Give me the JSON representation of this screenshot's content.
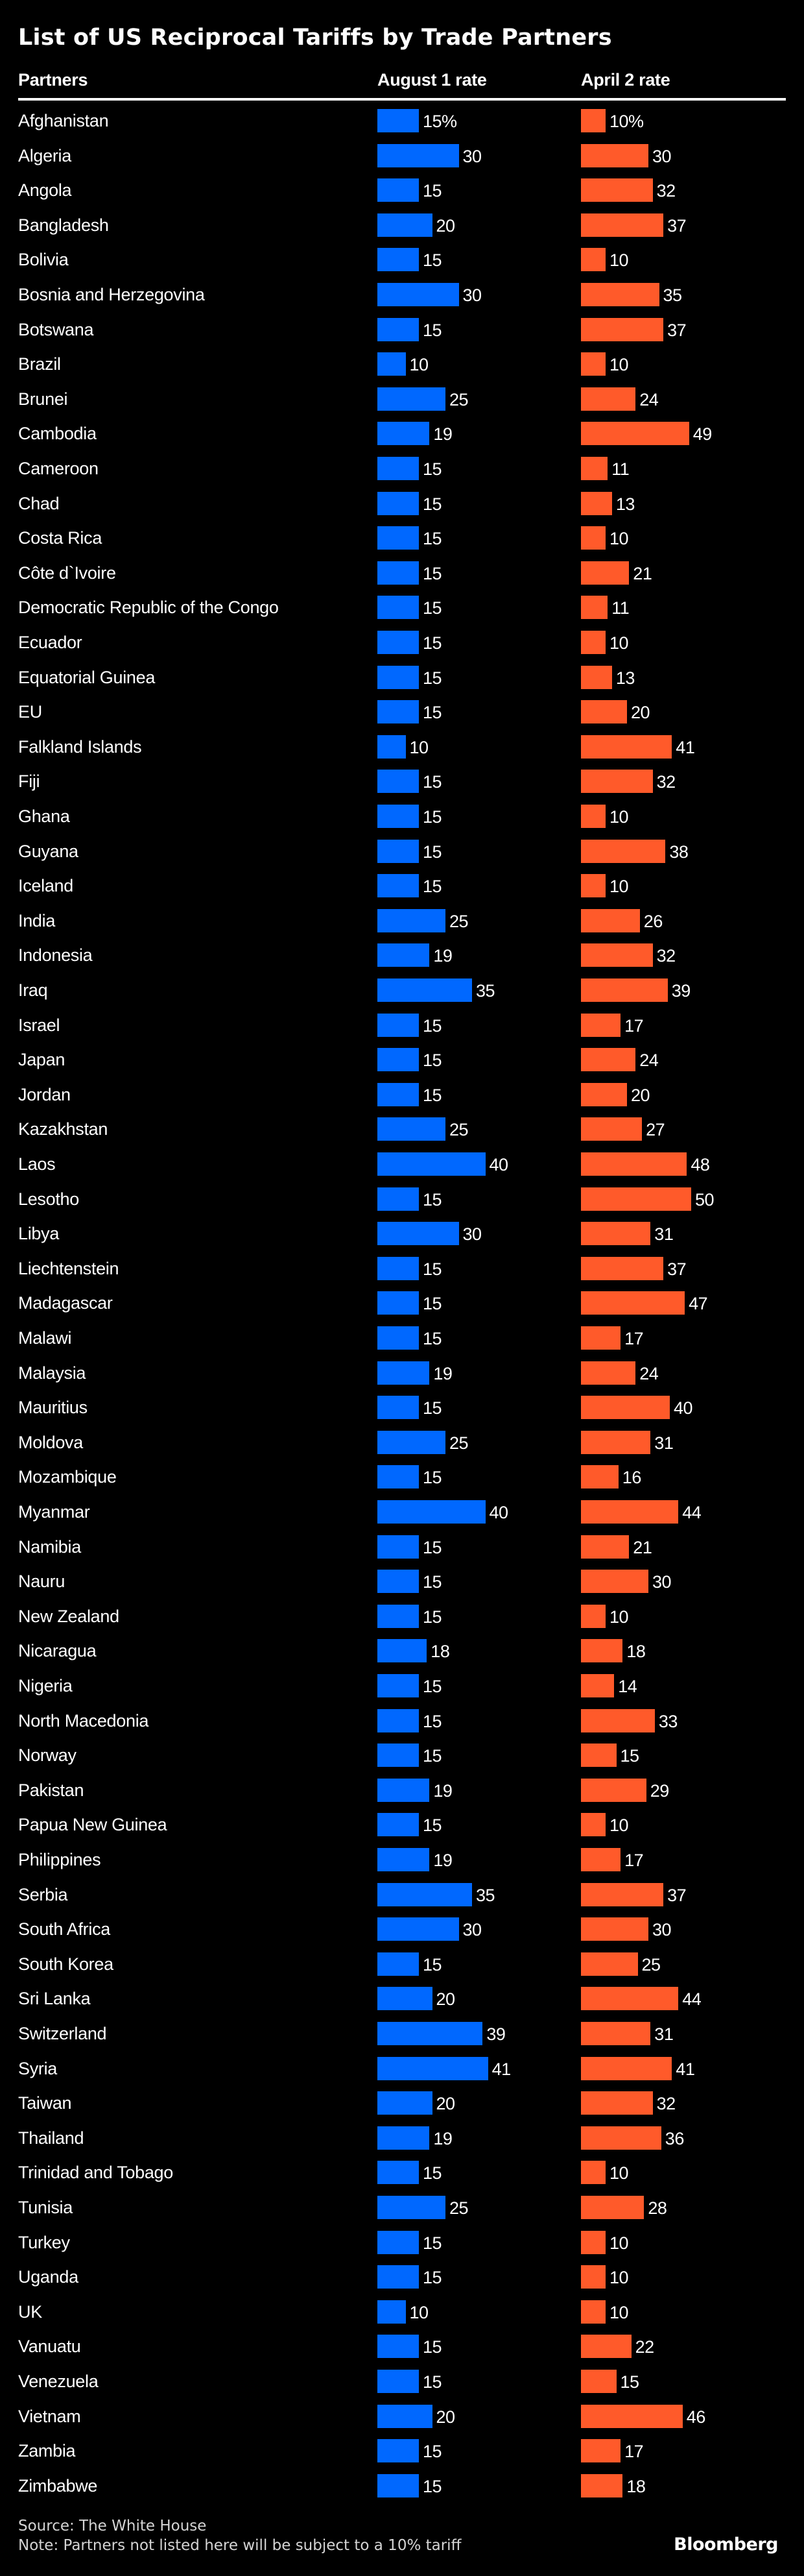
{
  "chart_data": {
    "type": "bar",
    "title": "List of US Reciprocal Tariffs by Trade Partners",
    "columns": {
      "partners": "Partners",
      "august": "August 1 rate",
      "april": "April 2 rate"
    },
    "unit": "%",
    "colors": {
      "august": "#0068ff",
      "april": "#ff5a2a"
    },
    "categories": [
      "Afghanistan",
      "Algeria",
      "Angola",
      "Bangladesh",
      "Bolivia",
      "Bosnia and Herzegovina",
      "Botswana",
      "Brazil",
      "Brunei",
      "Cambodia",
      "Cameroon",
      "Chad",
      "Costa Rica",
      "Côte d`Ivoire",
      "Democratic Republic of the Congo",
      "Ecuador",
      "Equatorial Guinea",
      "EU",
      "Falkland Islands",
      "Fiji",
      "Ghana",
      "Guyana",
      "Iceland",
      "India",
      "Indonesia",
      "Iraq",
      "Israel",
      "Japan",
      "Jordan",
      "Kazakhstan",
      "Laos",
      "Lesotho",
      "Libya",
      "Liechtenstein",
      "Madagascar",
      "Malawi",
      "Malaysia",
      "Mauritius",
      "Moldova",
      "Mozambique",
      "Myanmar",
      "Namibia",
      "Nauru",
      "New Zealand",
      "Nicaragua",
      "Nigeria",
      "North Macedonia",
      "Norway",
      "Pakistan",
      "Papua New Guinea",
      "Philippines",
      "Serbia",
      "South Africa",
      "South Korea",
      "Sri Lanka",
      "Switzerland",
      "Syria",
      "Taiwan",
      "Thailand",
      "Trinidad and Tobago",
      "Tunisia",
      "Turkey",
      "Uganda",
      "UK",
      "Vanuatu",
      "Venezuela",
      "Vietnam",
      "Zambia",
      "Zimbabwe"
    ],
    "series": [
      {
        "name": "August 1 rate",
        "values": [
          15,
          30,
          15,
          20,
          15,
          30,
          15,
          10,
          25,
          19,
          15,
          15,
          15,
          15,
          15,
          15,
          15,
          15,
          10,
          15,
          15,
          15,
          15,
          25,
          19,
          35,
          15,
          15,
          15,
          25,
          40,
          15,
          30,
          15,
          15,
          15,
          19,
          15,
          25,
          15,
          40,
          15,
          15,
          15,
          18,
          15,
          15,
          15,
          19,
          15,
          19,
          35,
          30,
          15,
          20,
          39,
          41,
          20,
          19,
          15,
          25,
          15,
          15,
          10,
          15,
          15,
          20,
          15,
          15
        ]
      },
      {
        "name": "April 2 rate",
        "values": [
          10,
          30,
          32,
          37,
          10,
          35,
          37,
          10,
          24,
          49,
          11,
          13,
          10,
          21,
          11,
          10,
          13,
          20,
          41,
          32,
          10,
          38,
          10,
          26,
          32,
          39,
          17,
          24,
          20,
          27,
          48,
          50,
          31,
          37,
          47,
          17,
          24,
          40,
          31,
          16,
          44,
          21,
          30,
          10,
          18,
          14,
          33,
          15,
          29,
          10,
          17,
          37,
          30,
          25,
          44,
          31,
          41,
          32,
          36,
          10,
          28,
          10,
          10,
          10,
          22,
          15,
          46,
          17,
          18
        ]
      }
    ],
    "first_row_suffix": "%"
  },
  "footer": {
    "source": "Source: The White House",
    "note": "Note: Partners not listed here will be subject to a 10% tariff",
    "logo": "Bloomberg"
  }
}
